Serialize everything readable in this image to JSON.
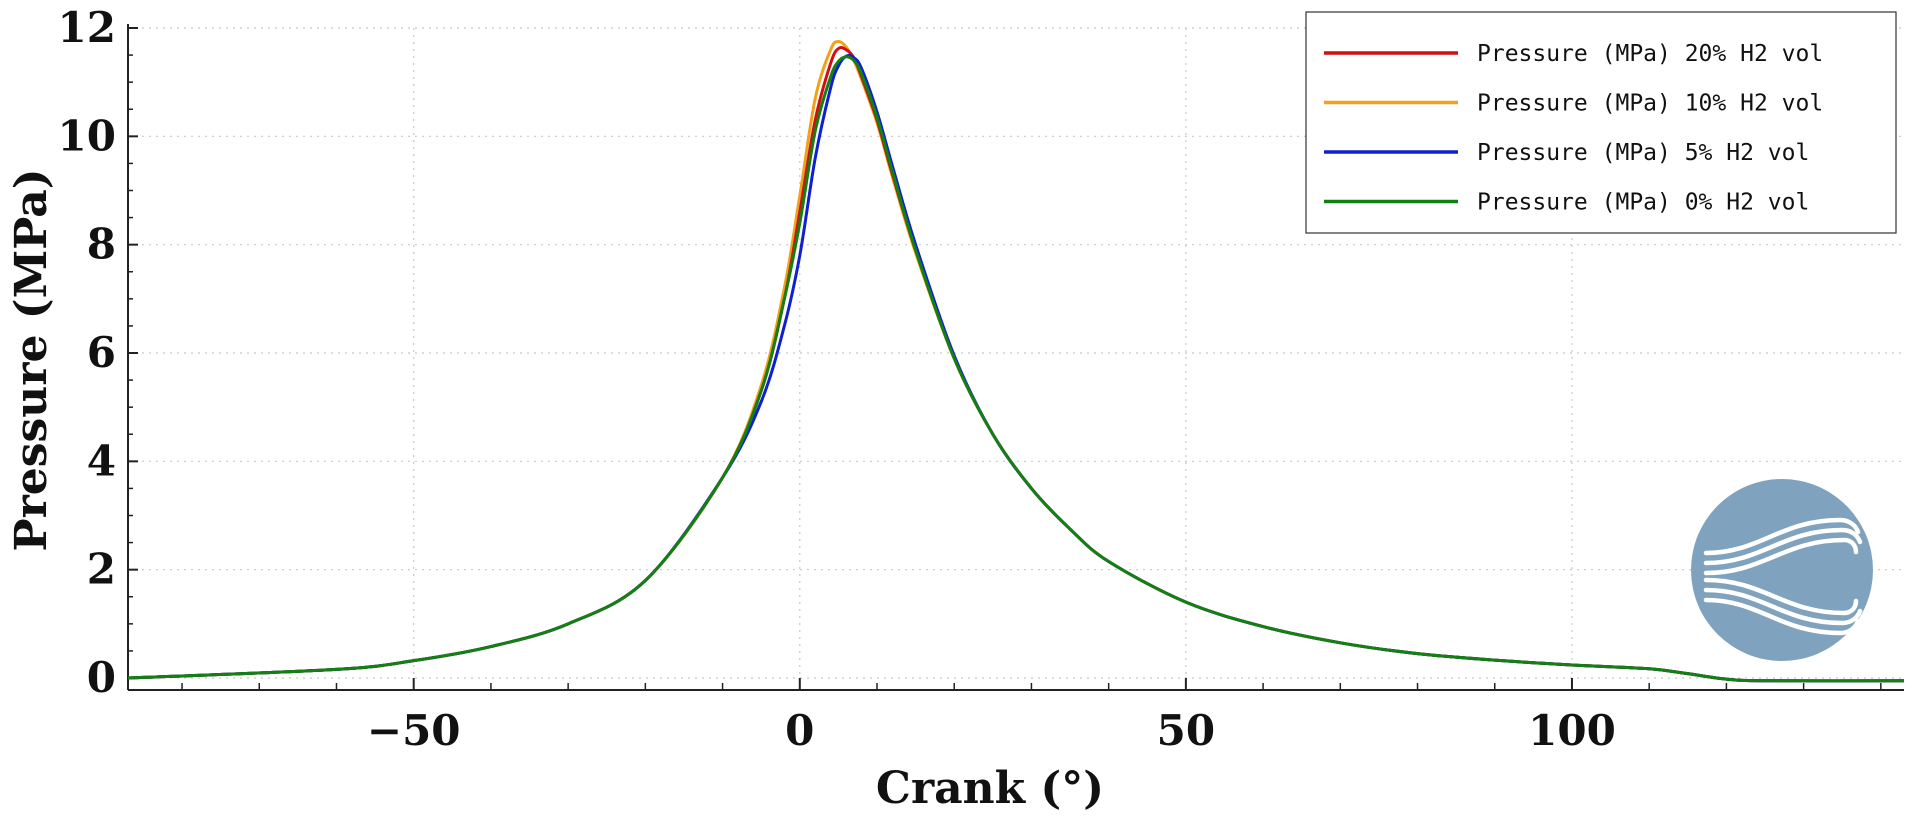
{
  "chart_data": {
    "type": "line",
    "title": "",
    "xlabel": "Crank (°)",
    "ylabel": "Pressure (MPa)",
    "xlim": [
      -87,
      143
    ],
    "ylim": [
      0,
      12
    ],
    "xticks": [
      -50,
      0,
      50,
      100
    ],
    "xtick_labels": [
      "−50",
      "0",
      "50",
      "100"
    ],
    "yticks": [
      0,
      2,
      4,
      6,
      8,
      10,
      12
    ],
    "ytick_labels": [
      "0",
      "2",
      "4",
      "6",
      "8",
      "10",
      "12"
    ],
    "grid": true,
    "legend_position": "top-right",
    "series": [
      {
        "name": "Pressure (MPa) 20% H2 vol",
        "color": "#d01010",
        "x": [
          -87,
          -60,
          -50,
          -40,
          -30,
          -20,
          -10,
          -5,
          -2,
          0,
          2,
          4,
          5,
          6,
          7,
          8,
          10,
          12,
          15,
          20,
          25,
          30,
          35,
          40,
          50,
          60,
          70,
          80,
          90,
          100,
          110,
          115,
          120,
          125,
          143
        ],
        "y": [
          0.0,
          0.16,
          0.32,
          0.58,
          1.0,
          1.8,
          3.7,
          5.3,
          7.0,
          8.6,
          10.3,
          11.35,
          11.62,
          11.6,
          11.45,
          11.1,
          10.3,
          9.3,
          7.9,
          5.9,
          4.5,
          3.5,
          2.75,
          2.15,
          1.4,
          0.95,
          0.65,
          0.45,
          0.33,
          0.24,
          0.17,
          0.08,
          -0.02,
          -0.05,
          -0.05
        ]
      },
      {
        "name": "Pressure (MPa) 10% H2 vol",
        "color": "#f2a21a",
        "x": [
          -87,
          -60,
          -50,
          -40,
          -30,
          -20,
          -10,
          -5,
          -2,
          0,
          2,
          4,
          5,
          6,
          7,
          8,
          10,
          12,
          15,
          20,
          25,
          30,
          35,
          40,
          50,
          60,
          70,
          80,
          90,
          100,
          110,
          115,
          120,
          125,
          143
        ],
        "y": [
          0.0,
          0.16,
          0.32,
          0.58,
          1.0,
          1.8,
          3.7,
          5.4,
          7.2,
          8.9,
          10.7,
          11.6,
          11.75,
          11.65,
          11.4,
          11.05,
          10.25,
          9.25,
          7.85,
          5.9,
          4.5,
          3.5,
          2.75,
          2.15,
          1.4,
          0.95,
          0.65,
          0.45,
          0.33,
          0.24,
          0.17,
          0.08,
          -0.02,
          -0.05,
          -0.05
        ]
      },
      {
        "name": "Pressure (MPa) 5% H2 vol",
        "color": "#1020d0",
        "x": [
          -87,
          -60,
          -50,
          -40,
          -30,
          -20,
          -10,
          -5,
          -2,
          0,
          2,
          4,
          5,
          6,
          7,
          8,
          10,
          12,
          15,
          20,
          25,
          30,
          35,
          40,
          50,
          60,
          70,
          80,
          90,
          100,
          110,
          115,
          120,
          125,
          143
        ],
        "y": [
          0.0,
          0.16,
          0.32,
          0.58,
          1.0,
          1.8,
          3.7,
          5.1,
          6.5,
          7.8,
          9.6,
          10.9,
          11.3,
          11.48,
          11.45,
          11.25,
          10.45,
          9.45,
          8.0,
          5.95,
          4.5,
          3.5,
          2.75,
          2.15,
          1.4,
          0.95,
          0.65,
          0.45,
          0.33,
          0.24,
          0.17,
          0.08,
          -0.02,
          -0.05,
          -0.05
        ]
      },
      {
        "name": "Pressure (MPa) 0% H2 vol",
        "color": "#138013",
        "x": [
          -87,
          -60,
          -50,
          -40,
          -30,
          -20,
          -10,
          -5,
          -2,
          0,
          2,
          4,
          5,
          6,
          7,
          8,
          10,
          12,
          15,
          20,
          25,
          30,
          35,
          40,
          50,
          60,
          70,
          80,
          90,
          100,
          110,
          115,
          120,
          125,
          143
        ],
        "y": [
          0.0,
          0.16,
          0.32,
          0.58,
          1.0,
          1.8,
          3.7,
          5.3,
          7.0,
          8.4,
          10.1,
          11.1,
          11.38,
          11.47,
          11.4,
          11.15,
          10.35,
          9.35,
          7.9,
          5.9,
          4.5,
          3.5,
          2.75,
          2.15,
          1.4,
          0.95,
          0.65,
          0.45,
          0.33,
          0.24,
          0.17,
          0.08,
          -0.02,
          -0.05,
          -0.05
        ]
      }
    ]
  },
  "logo": {
    "name": "flow-channel-logo",
    "color": "#7fa3bf"
  }
}
